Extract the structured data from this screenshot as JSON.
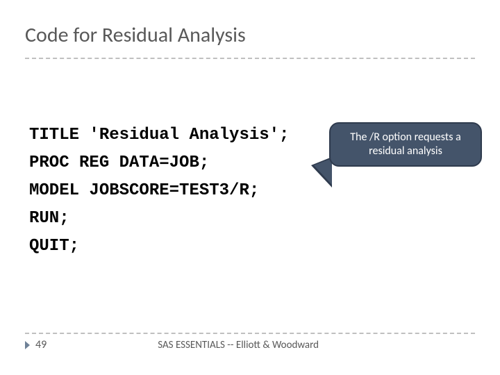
{
  "slide": {
    "title": "Code for Residual Analysis",
    "title_color": "#595959",
    "title_fontsize": 30,
    "divider_color": "#bfbfbf"
  },
  "code": {
    "font_family": "Courier New",
    "fontsize": 24,
    "font_weight": "bold",
    "color": "#000000",
    "line_height": 40,
    "lines": [
      "TITLE 'Residual Analysis';",
      "PROC REG DATA=JOB;",
      "MODEL JOBSCORE=TEST3/R;",
      "RUN;",
      "QUIT;"
    ]
  },
  "callout": {
    "text_line1": "The /R option requests a",
    "text_line2": "residual analysis",
    "bg_color": "#44546a",
    "border_color": "#2f3b4e",
    "text_color": "#ffffff",
    "fontsize": 16,
    "border_radius": 14
  },
  "footer": {
    "page_number": "49",
    "text": "SAS ESSENTIALS -- Elliott & Woodward",
    "marker_color": "#6f8197",
    "text_color": "#595959",
    "divider_color": "#bfbfbf"
  }
}
